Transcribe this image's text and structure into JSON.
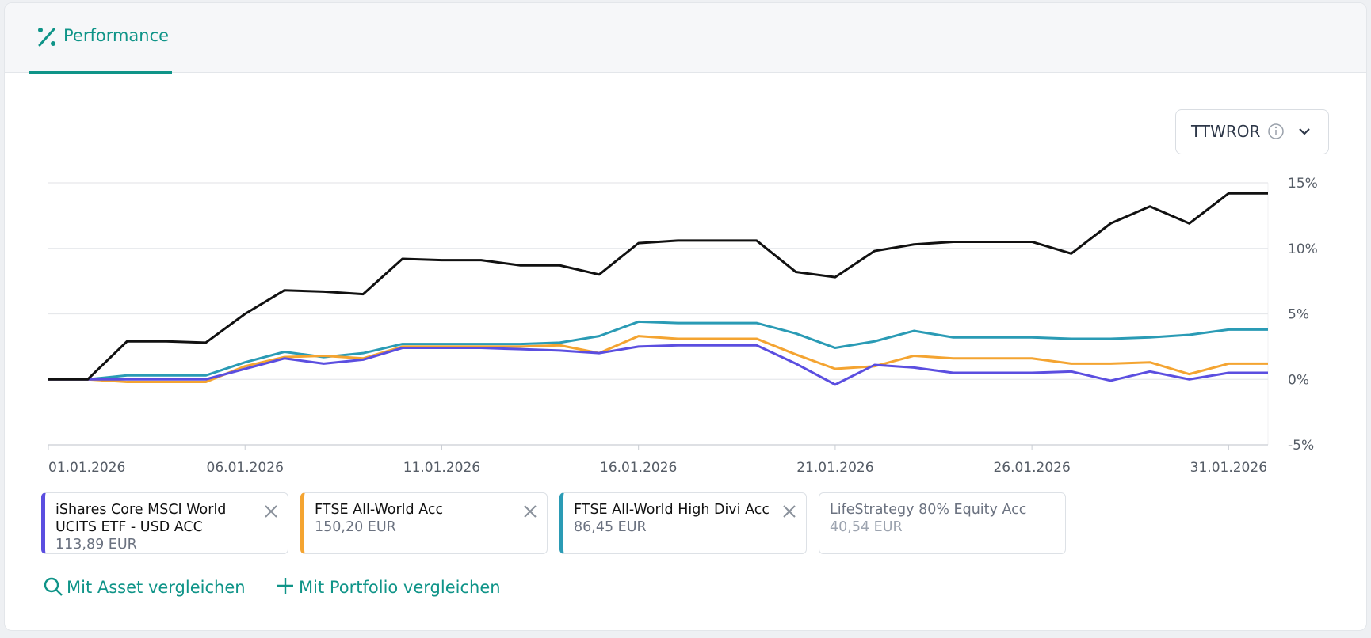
{
  "tab": {
    "label": "Performance"
  },
  "selector": {
    "label": "TTWROR"
  },
  "chart_data": {
    "type": "line",
    "categories": [
      "01.01.2026",
      null,
      null,
      null,
      null,
      "06.01.2026",
      null,
      null,
      null,
      null,
      "11.01.2026",
      null,
      null,
      null,
      null,
      "16.01.2026",
      null,
      null,
      null,
      null,
      "21.01.2026",
      null,
      null,
      null,
      null,
      "26.01.2026",
      null,
      null,
      null,
      null,
      "31.01.2026",
      null
    ],
    "ylim": [
      -5,
      15
    ],
    "yticks": [
      {
        "value": -5,
        "label": "-5%"
      },
      {
        "value": 0,
        "label": "0%"
      },
      {
        "value": 5,
        "label": "5%"
      },
      {
        "value": 10,
        "label": "10%"
      },
      {
        "value": 15,
        "label": "15%"
      }
    ],
    "grid": true,
    "series": [
      {
        "color": "#111111",
        "values": [
          0,
          0,
          2.9,
          2.9,
          2.8,
          5.0,
          6.8,
          6.7,
          6.5,
          9.2,
          9.1,
          9.1,
          8.7,
          8.7,
          8.0,
          10.4,
          10.6,
          10.6,
          10.6,
          8.2,
          7.8,
          9.8,
          10.3,
          10.5,
          10.5,
          10.5,
          9.6,
          11.9,
          13.2,
          11.9,
          14.2,
          14.2
        ]
      },
      {
        "name": "iShares Core MSCI World UCITS ETF - USD ACC",
        "price": "113,89 EUR",
        "color": "#5b4ee0",
        "values": [
          0,
          0,
          0,
          0,
          0,
          0.8,
          1.6,
          1.2,
          1.5,
          2.4,
          2.4,
          2.4,
          2.3,
          2.2,
          2.0,
          2.5,
          2.6,
          2.6,
          2.6,
          1.2,
          -0.4,
          1.1,
          0.9,
          0.5,
          0.5,
          0.5,
          0.6,
          -0.1,
          0.6,
          0.0,
          0.5,
          0.5
        ]
      },
      {
        "name": "FTSE All-World Acc",
        "price": "150,20 EUR",
        "color": "#f4a431",
        "values": [
          0,
          0,
          -0.2,
          -0.2,
          -0.2,
          1.0,
          1.7,
          1.8,
          1.6,
          2.5,
          2.5,
          2.5,
          2.5,
          2.6,
          2.0,
          3.3,
          3.1,
          3.1,
          3.1,
          1.9,
          0.8,
          1.0,
          1.8,
          1.6,
          1.6,
          1.6,
          1.2,
          1.2,
          1.3,
          0.4,
          1.2,
          1.2
        ]
      },
      {
        "name": "FTSE All-World High Divi Acc",
        "price": "86,45 EUR",
        "color": "#2a9bb5",
        "values": [
          0,
          0,
          0.3,
          0.3,
          0.3,
          1.3,
          2.1,
          1.7,
          2.0,
          2.7,
          2.7,
          2.7,
          2.7,
          2.8,
          3.3,
          4.4,
          4.3,
          4.3,
          4.3,
          3.5,
          2.4,
          2.9,
          3.7,
          3.2,
          3.2,
          3.2,
          3.1,
          3.1,
          3.2,
          3.4,
          3.8,
          3.8
        ]
      }
    ]
  },
  "inactive_asset": {
    "name": "LifeStrategy 80% Equity Acc",
    "price": "40,54 EUR"
  },
  "actions": [
    "Mit Asset vergleichen",
    "Mit Portfolio vergleichen"
  ]
}
